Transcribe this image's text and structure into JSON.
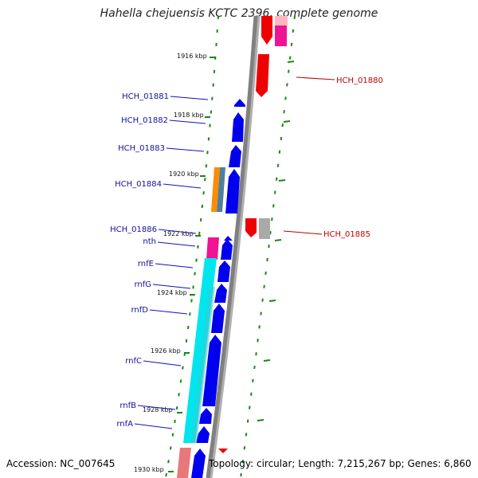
{
  "title": "Hahella chejuensis KCTC 2396, complete genome",
  "footer": {
    "accession": "Accession: NC_007645",
    "topology": "Topology: circular; Length: 7,215,267 bp; Genes: 6,860"
  },
  "colors": {
    "forward_cds": "#0000ee",
    "reverse_cds": "#ee0000",
    "rnf_operon": "#00e5ee",
    "nth": "#ee1493",
    "hypothetical": "#ff8c00",
    "pseudo": "#a9a9a9",
    "pink_cds": "#ff69b4",
    "ruler_tick": "#138a13",
    "axis": "#808080"
  },
  "ruler": [
    "1916 kbp",
    "1918 kbp",
    "1920 kbp",
    "1922 kbp",
    "1924 kbp",
    "1926 kbp",
    "1928 kbp",
    "1930 kbp"
  ],
  "genes_left": [
    "HCH_01881",
    "HCH_01882",
    "HCH_01883",
    "HCH_01884",
    "HCH_01886",
    "nth",
    "rnfE",
    "rnfG",
    "rnfD",
    "rnfC",
    "rnfB",
    "rnfA"
  ],
  "genes_right": [
    "HCH_01880",
    "HCH_01885"
  ]
}
